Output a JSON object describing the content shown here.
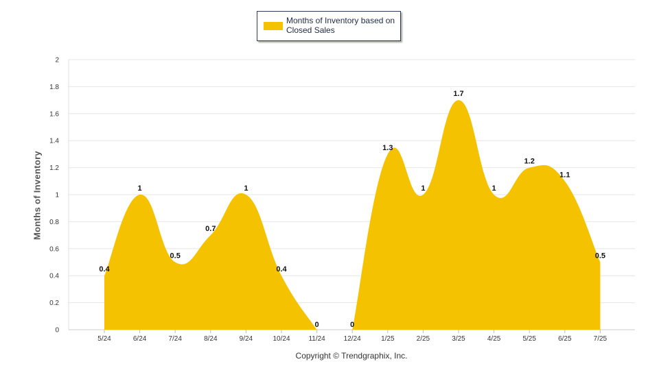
{
  "chart_data": {
    "type": "area",
    "categories": [
      "5/24",
      "6/24",
      "7/24",
      "8/24",
      "9/24",
      "10/24",
      "11/24",
      "12/24",
      "1/25",
      "2/25",
      "3/25",
      "4/25",
      "5/25",
      "6/25",
      "7/25"
    ],
    "series": [
      {
        "name": "Months of Inventory based on Closed Sales",
        "values": [
          0.4,
          1,
          0.5,
          0.7,
          1,
          0.4,
          0,
          0,
          1.3,
          1,
          1.7,
          1,
          1.2,
          1.1,
          0.5
        ],
        "labels": [
          "0.4",
          "1",
          "0.5",
          "0.7",
          "1",
          "0.4",
          "0",
          "0",
          "1.3",
          "1",
          "1.7",
          "1",
          "1.2",
          "1.1",
          "0.5"
        ],
        "color": "#F5C200"
      }
    ],
    "ylabel": "Months of Inventory",
    "ylim": [
      0,
      2
    ],
    "yticks": [
      "0",
      "0.2",
      "0.4",
      "0.6",
      "0.8",
      "1",
      "1.2",
      "1.4",
      "1.6",
      "1.8",
      "2"
    ],
    "grid": true,
    "legend": "top-center"
  },
  "footer": {
    "copyright": "Copyright © Trendgraphix, Inc."
  }
}
